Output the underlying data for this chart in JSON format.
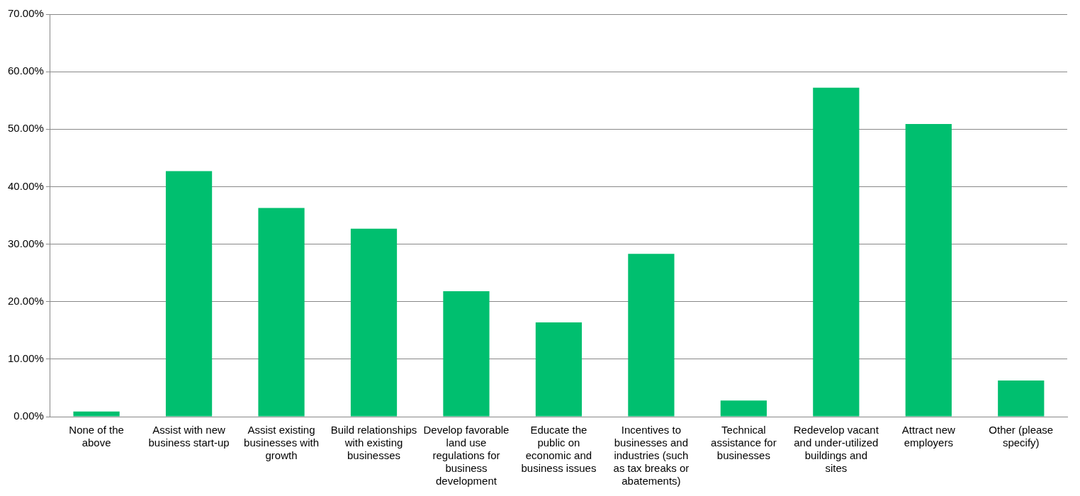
{
  "chart_data": {
    "type": "bar",
    "categories": [
      "None of the above",
      "Assist with new business start-up",
      "Assist existing businesses with growth",
      "Build relationships with existing businesses",
      "Develop favorable land use regulations for business development",
      "Educate the public on economic and business issues",
      "Incentives to businesses and industries (such as tax breaks or abatements)",
      "Technical assistance for businesses",
      "Redevelop vacant and under-utilized buildings and sites",
      "Attract new employers",
      "Other (please specify)"
    ],
    "values": [
      0.9,
      42.7,
      36.3,
      32.7,
      21.8,
      16.4,
      28.3,
      2.8,
      57.2,
      50.9,
      6.3
    ],
    "color": "#00bf6f",
    "ylim": [
      0,
      70
    ],
    "yticks": [
      {
        "value": 0,
        "label": "0.00%"
      },
      {
        "value": 10,
        "label": "10.00%"
      },
      {
        "value": 20,
        "label": "20.00%"
      },
      {
        "value": 30,
        "label": "30.00%"
      },
      {
        "value": 40,
        "label": "40.00%"
      },
      {
        "value": 50,
        "label": "50.00%"
      },
      {
        "value": 60,
        "label": "60.00%"
      },
      {
        "value": 70,
        "label": "70.00%"
      }
    ],
    "grid": "y",
    "legend": false
  }
}
